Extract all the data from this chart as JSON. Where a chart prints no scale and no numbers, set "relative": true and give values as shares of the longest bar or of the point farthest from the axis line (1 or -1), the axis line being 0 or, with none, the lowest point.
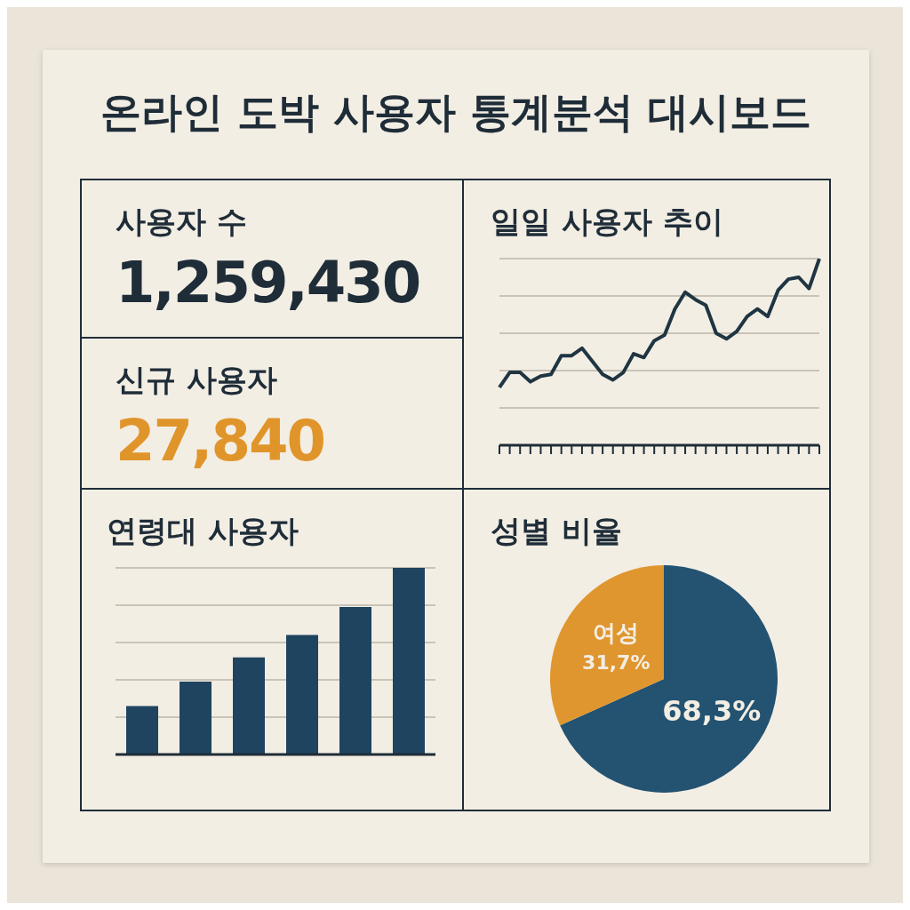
{
  "chart_data": [
    {
      "type": "other",
      "title": "온라인 도박 사용자 통계분석 대시보드"
    },
    {
      "type": "other",
      "title": "사용자 수",
      "annotations": [
        "1,259,430"
      ],
      "color": "#1f2d38"
    },
    {
      "type": "line",
      "title": "일일 사용자 추이",
      "relative": true,
      "grid": "y",
      "marker": "none",
      "line_style": "solid",
      "color": "#1f3542",
      "categories": [
        null,
        null,
        null,
        null,
        null,
        null,
        null,
        null,
        null,
        null,
        null,
        null,
        null,
        null,
        null,
        null,
        null,
        null,
        null,
        null,
        null,
        null,
        null,
        null,
        null,
        null,
        null,
        null,
        null,
        null,
        null,
        null
      ],
      "values": [
        0.31,
        0.39,
        0.39,
        0.34,
        0.37,
        0.38,
        0.48,
        0.48,
        0.52,
        0.45,
        0.38,
        0.35,
        0.39,
        0.49,
        0.47,
        0.56,
        0.59,
        0.73,
        0.82,
        0.78,
        0.75,
        0.6,
        0.57,
        0.61,
        0.69,
        0.73,
        0.69,
        0.83,
        0.89,
        0.9,
        0.84,
        1
      ]
    },
    {
      "type": "other",
      "title": "신규 사용자",
      "annotations": [
        "27,840"
      ],
      "color": "#e0952b"
    },
    {
      "type": "bar",
      "title": "연령대 사용자",
      "relative": true,
      "grid": "y",
      "color": "#1f4460",
      "categories": [
        null,
        null,
        null,
        null,
        null,
        null
      ],
      "values": [
        0.26,
        0.39,
        0.52,
        0.64,
        0.79,
        1
      ]
    },
    {
      "type": "pie",
      "title": "성별 비율",
      "categories": [
        null,
        "여성"
      ],
      "values": [
        68.3,
        31.7
      ],
      "colors": [
        "#235371",
        "#e0962e"
      ],
      "value_labels": [
        "68,3%",
        "31,7%"
      ]
    }
  ]
}
